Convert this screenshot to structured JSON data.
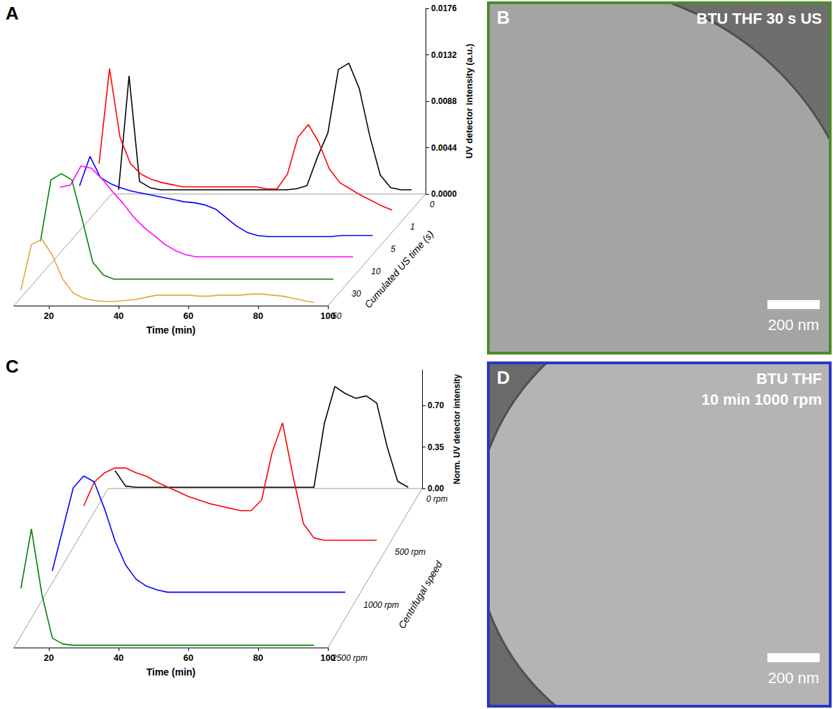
{
  "chart_data": [
    {
      "type": "line",
      "panel": "A",
      "x_label": "Time (min)",
      "y_label": "UV detector intensity (a.u.)",
      "z_label": "Cumulated US time (s)",
      "xlim": [
        10,
        100
      ],
      "xticks": [
        20,
        40,
        60,
        80,
        100
      ],
      "ylim": [
        0,
        0.0176
      ],
      "yticks": [
        {
          "value": 0,
          "label": "0.0000"
        },
        {
          "value": 0.0044,
          "label": "0.0044"
        },
        {
          "value": 0.0088,
          "label": "0.0088"
        },
        {
          "value": 0.0132,
          "label": "0.0132"
        },
        {
          "value": 0.0176,
          "label": "0.0176"
        }
      ],
      "x": [
        12,
        15,
        18,
        21,
        24,
        27,
        30,
        33,
        36,
        39,
        42,
        45,
        48,
        51,
        54,
        57,
        60,
        63,
        66,
        69,
        72,
        75,
        78,
        81,
        84,
        87,
        90,
        93,
        96
      ],
      "series": [
        {
          "name": "0",
          "color": "#000000",
          "values": [
            0.0004,
            0.0112,
            0.0012,
            0.0006,
            0.0004,
            0.0004,
            0.0004,
            0.0004,
            0.0004,
            0.0004,
            0.0004,
            0.0004,
            0.0004,
            0.0004,
            0.0004,
            0.0004,
            0.0004,
            0.0005,
            0.0008,
            0.0035,
            0.0058,
            0.0118,
            0.0124,
            0.01,
            0.0055,
            0.0018,
            0.0006,
            0.0004,
            0.0004
          ]
        },
        {
          "name": "1",
          "color": "#ff0000",
          "values": [
            0.005,
            0.014,
            0.0075,
            0.005,
            0.004,
            0.0035,
            0.0032,
            0.003,
            0.0028,
            0.0028,
            0.0028,
            0.0028,
            0.0028,
            0.0028,
            0.0028,
            0.0028,
            0.0026,
            0.0026,
            0.004,
            0.0075,
            0.0087,
            0.007,
            0.0045,
            0.0032,
            0.0026,
            0.002,
            0.0015,
            0.001,
            0.0006
          ]
        },
        {
          "name": "5",
          "color": "#0000ff",
          "values": [
            0.005,
            0.0078,
            0.0058,
            0.0052,
            0.0048,
            0.0045,
            0.0043,
            0.0041,
            0.0039,
            0.0037,
            0.0035,
            0.0034,
            0.0032,
            0.0028,
            0.002,
            0.0012,
            0.0006,
            0.0003,
            0.0002,
            0.0002,
            0.0002,
            0.0002,
            0.0002,
            0.0002,
            0.0002,
            0.0003,
            0.0003,
            0.0003,
            0.0003
          ]
        },
        {
          "name": "10",
          "color": "#ff00ff",
          "values": [
            0.007,
            0.0072,
            0.009,
            0.0088,
            0.0078,
            0.0066,
            0.0055,
            0.0042,
            0.0032,
            0.0024,
            0.0016,
            0.001,
            0.0006,
            0.0004,
            0.0004,
            0.0004,
            0.0004,
            0.0004,
            0.0004,
            0.0004,
            0.0004,
            0.0004,
            0.0004,
            0.0004,
            0.0004,
            0.0004,
            0.0004,
            0.0004,
            0.0004
          ]
        },
        {
          "name": "30",
          "color": "#008000",
          "values": [
            0.004,
            0.0098,
            0.0104,
            0.0098,
            0.006,
            0.002,
            0.0008,
            0.0004,
            0.0004,
            0.0004,
            0.0004,
            0.0004,
            0.0004,
            0.0004,
            0.0004,
            0.0004,
            0.0004,
            0.0004,
            0.0004,
            0.0004,
            0.0004,
            0.0004,
            0.0004,
            0.0004,
            0.0004,
            0.0004,
            0.0004,
            0.0004,
            0.0004
          ]
        },
        {
          "name": "50",
          "color": "#e8a33a",
          "values": [
            0.0015,
            0.0058,
            0.0063,
            0.0048,
            0.0025,
            0.0012,
            0.0007,
            0.0005,
            0.0004,
            0.0004,
            0.0005,
            0.0006,
            0.0008,
            0.001,
            0.001,
            0.001,
            0.001,
            0.0009,
            0.0009,
            0.001,
            0.001,
            0.001,
            0.0011,
            0.0011,
            0.001,
            0.0009,
            0.0007,
            0.0005,
            0.0003
          ]
        }
      ]
    },
    {
      "type": "line",
      "panel": "C",
      "x_label": "Time (min)",
      "y_label": "Norm. UV detector intensity",
      "z_label": "Centrifugal speed",
      "xlim": [
        10,
        100
      ],
      "xticks": [
        20,
        40,
        60,
        80,
        100
      ],
      "ylim": [
        0,
        1
      ],
      "yticks": [
        {
          "value": 0,
          "label": "0.00"
        },
        {
          "value": 0.35,
          "label": "0.35"
        },
        {
          "value": 0.7,
          "label": "0.70"
        }
      ],
      "x": [
        12,
        15,
        18,
        21,
        24,
        27,
        30,
        33,
        36,
        39,
        42,
        45,
        48,
        51,
        54,
        57,
        60,
        63,
        66,
        69,
        72,
        75,
        78,
        81,
        84,
        87,
        90,
        93,
        96
      ],
      "series": [
        {
          "name": "0 rpm",
          "color": "#000000",
          "values": [
            0.15,
            0.02,
            0.01,
            0.01,
            0.01,
            0.01,
            0.01,
            0.01,
            0.01,
            0.01,
            0.01,
            0.01,
            0.01,
            0.01,
            0.01,
            0.01,
            0.01,
            0.01,
            0.01,
            0.01,
            0.55,
            0.86,
            0.8,
            0.76,
            0.78,
            0.72,
            0.35,
            0.06,
            0.01
          ]
        },
        {
          "name": "500 rpm",
          "color": "#ff0000",
          "values": [
            0.3,
            0.5,
            0.58,
            0.62,
            0.62,
            0.58,
            0.55,
            0.5,
            0.46,
            0.42,
            0.38,
            0.35,
            0.32,
            0.3,
            0.28,
            0.26,
            0.26,
            0.35,
            0.75,
            1.0,
            0.55,
            0.15,
            0.03,
            0.01,
            0.01,
            0.01,
            0.01,
            0.01,
            0.01
          ]
        },
        {
          "name": "1000 rpm",
          "color": "#0000ff",
          "values": [
            0.2,
            0.55,
            0.9,
            1.0,
            0.95,
            0.72,
            0.45,
            0.25,
            0.13,
            0.07,
            0.04,
            0.02,
            0.02,
            0.02,
            0.02,
            0.02,
            0.02,
            0.02,
            0.02,
            0.02,
            0.02,
            0.02,
            0.02,
            0.02,
            0.02,
            0.02,
            0.02,
            0.02,
            0.02
          ]
        },
        {
          "name": "2500 rpm",
          "color": "#008000",
          "values": [
            0.5,
            1.0,
            0.45,
            0.08,
            0.03,
            0.02,
            0.02,
            0.02,
            0.02,
            0.02,
            0.02,
            0.02,
            0.02,
            0.02,
            0.02,
            0.02,
            0.02,
            0.02,
            0.02,
            0.02,
            0.02,
            0.02,
            0.02,
            0.02,
            0.02,
            0.02,
            0.02,
            0.02,
            0.02
          ]
        }
      ]
    }
  ],
  "images": [
    {
      "panel": "B",
      "title": "BTU THF 30 s US",
      "scale_bar": "200 nm"
    },
    {
      "panel": "D",
      "title": [
        "BTU THF",
        "10 min 1000 rpm"
      ],
      "scale_bar": "200 nm"
    }
  ]
}
